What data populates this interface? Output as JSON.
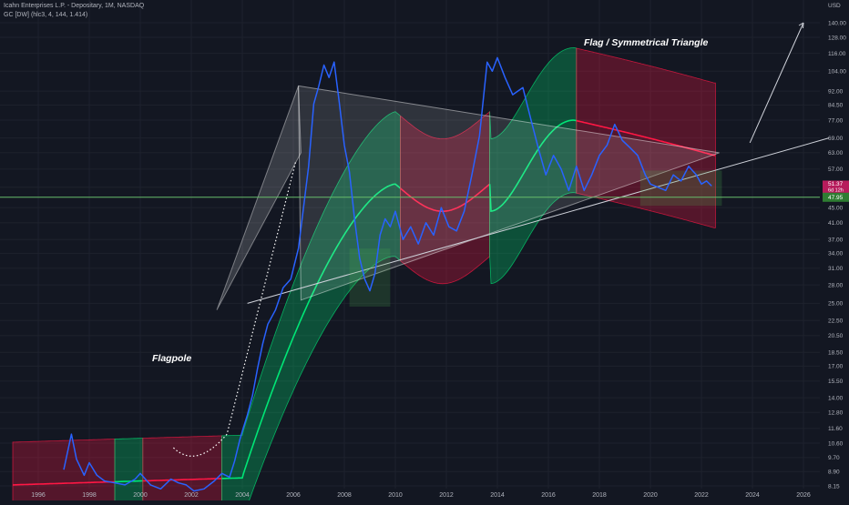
{
  "header": {
    "title": "Icahn Enterprises L.P. - Depositary, 1M, NASDAQ",
    "indicator": "GC [DW] (hlc3, 4, 144, 1.414)"
  },
  "annotations": {
    "flag_triangle": "Flag / Symmetrical Triangle",
    "flagpole": "Flagpole"
  },
  "price_axis": {
    "currency": "USD",
    "ticks": [
      "140.00",
      "128.00",
      "116.00",
      "104.00",
      "92.00",
      "84.50",
      "77.00",
      "69.00",
      "63.00",
      "57.00",
      "51.00",
      "45.00",
      "41.00",
      "37.00",
      "34.00",
      "31.00",
      "28.00",
      "25.00",
      "22.50",
      "20.50",
      "18.50",
      "17.00",
      "15.50",
      "14.00",
      "12.80",
      "11.60",
      "10.60",
      "9.70",
      "8.90",
      "8.15"
    ],
    "badge_price": "51.37",
    "badge_countdown": "6d 12h",
    "badge_level": "47.95"
  },
  "colors": {
    "background": "#131722",
    "price_line": "#2962ff",
    "band_bull": "#00e676",
    "band_bear": "#ff1744",
    "level_line": "#66bb6a",
    "triangle": "#ffffff",
    "badge_price_bg": "#b71c5c",
    "badge_level_bg": "#2e7d32"
  },
  "chart_data": {
    "type": "line",
    "title": "Icahn Enterprises L.P. - Depositary, 1M, NASDAQ",
    "y_scale": "log",
    "ylim": [
      8.15,
      145
    ],
    "xlim": [
      1995,
      2027
    ],
    "x_ticks": [
      1996,
      1998,
      2000,
      2002,
      2004,
      2006,
      2008,
      2010,
      2012,
      2014,
      2016,
      2018,
      2020,
      2022,
      2024,
      2026
    ],
    "horizontal_level": 47.95,
    "series": [
      {
        "x": [
          1997.0,
          1997.3,
          1997.5,
          1997.8,
          1998.0,
          1998.3,
          1998.6,
          1999.0,
          1999.4,
          1999.8,
          2000.0,
          2000.4,
          2000.8,
          2001.2,
          2001.5,
          2001.8,
          2002.1,
          2002.5,
          2002.9,
          2003.2,
          2003.5,
          2003.7,
          2003.9,
          2004.0,
          2004.2,
          2004.4,
          2004.6,
          2004.8,
          2005.0,
          2005.3,
          2005.6,
          2005.9,
          2006.2,
          2006.4,
          2006.6,
          2006.8,
          2007.0,
          2007.2,
          2007.4,
          2007.6,
          2007.8,
          2008.0,
          2008.2,
          2008.4,
          2008.6,
          2008.8,
          2009.0,
          2009.2,
          2009.4,
          2009.6,
          2009.8,
          2010.0,
          2010.3,
          2010.6,
          2010.9,
          2011.2,
          2011.5,
          2011.8,
          2012.1,
          2012.4,
          2012.7,
          2013.0,
          2013.3,
          2013.6,
          2013.8,
          2014.0,
          2014.3,
          2014.6,
          2015.0,
          2015.3,
          2015.6,
          2015.9,
          2016.2,
          2016.5,
          2016.8,
          2017.1,
          2017.4,
          2017.7,
          2018.0,
          2018.3,
          2018.6,
          2018.9,
          2019.2,
          2019.5,
          2019.8,
          2020.0,
          2020.3,
          2020.6,
          2020.9,
          2021.2,
          2021.5,
          2021.8,
          2022.0,
          2022.2,
          2022.4
        ],
        "values": [
          9.0,
          11.2,
          9.6,
          8.7,
          9.4,
          8.7,
          8.4,
          8.3,
          8.2,
          8.5,
          8.8,
          8.2,
          8.0,
          8.5,
          8.3,
          8.2,
          7.9,
          8.0,
          8.4,
          8.8,
          8.6,
          9.5,
          10.8,
          11.4,
          12.6,
          14.2,
          16.8,
          19.5,
          22.0,
          24.0,
          27.5,
          29.0,
          35.0,
          45.0,
          58.0,
          85.0,
          95.0,
          108.0,
          100.0,
          110.0,
          86.0,
          66.0,
          56.0,
          42.0,
          33.0,
          29.0,
          27.0,
          30.0,
          38.0,
          42.0,
          40.0,
          44.0,
          37.0,
          40.0,
          36.0,
          41.0,
          38.0,
          45.0,
          40.0,
          39.0,
          44.0,
          55.0,
          70.0,
          110.0,
          104.0,
          113.0,
          100.0,
          90.0,
          94.0,
          78.0,
          65.0,
          55.0,
          62.0,
          57.0,
          50.0,
          58.0,
          50.0,
          55.0,
          62.0,
          66.0,
          75.0,
          68.0,
          65.0,
          62.0,
          55.0,
          52.0,
          51.0,
          50.0,
          55.0,
          53.0,
          58.0,
          55.0,
          52.0,
          53.0,
          51.4
        ]
      }
    ]
  }
}
